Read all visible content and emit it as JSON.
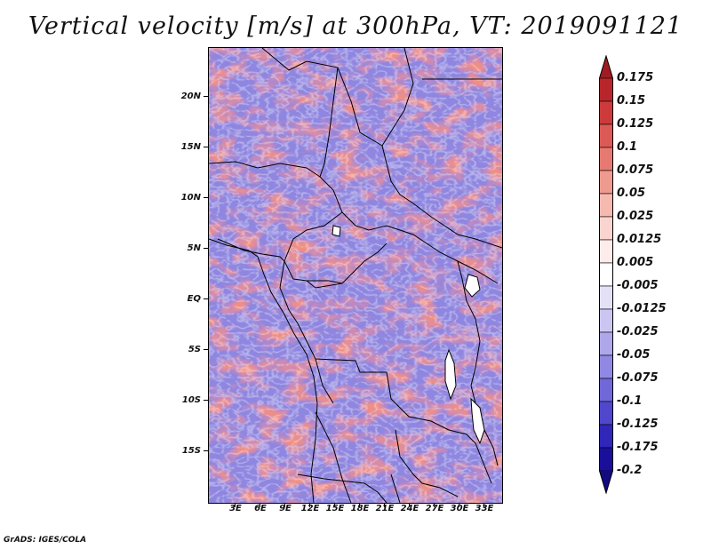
{
  "title": "Vertical velocity [m/s] at 300hPa, VT: 2019091121",
  "credit": "GrADS: IGES/COLA",
  "lat_labels": [
    "20N",
    "15N",
    "10N",
    "5N",
    "EQ",
    "5S",
    "10S",
    "15S"
  ],
  "lon_labels": [
    "3E",
    "6E",
    "9E",
    "12E",
    "15E",
    "18E",
    "21E",
    "24E",
    "27E",
    "30E",
    "33E"
  ],
  "colorbar": {
    "labels": [
      "0.175",
      "0.15",
      "0.125",
      "0.1",
      "0.075",
      "0.05",
      "0.025",
      "0.0125",
      "0.005",
      "-0.005",
      "-0.0125",
      "-0.025",
      "-0.05",
      "-0.075",
      "-0.1",
      "-0.125",
      "-0.175",
      "-0.2"
    ],
    "colors": [
      "#a01c22",
      "#b8262c",
      "#cc3a3c",
      "#dc5a56",
      "#e67a72",
      "#ef9a90",
      "#f6b9b0",
      "#fad5cf",
      "#fdecea",
      "#ffffff",
      "#e4e1f7",
      "#cbc6f1",
      "#aea7ea",
      "#9088e2",
      "#7068d8",
      "#5047cc",
      "#3026b8",
      "#1a0f9a",
      "#120a80"
    ]
  },
  "legend_colors": {
    "positive": "#e8867c",
    "negative": "#7f79dc",
    "border": "#000000"
  }
}
